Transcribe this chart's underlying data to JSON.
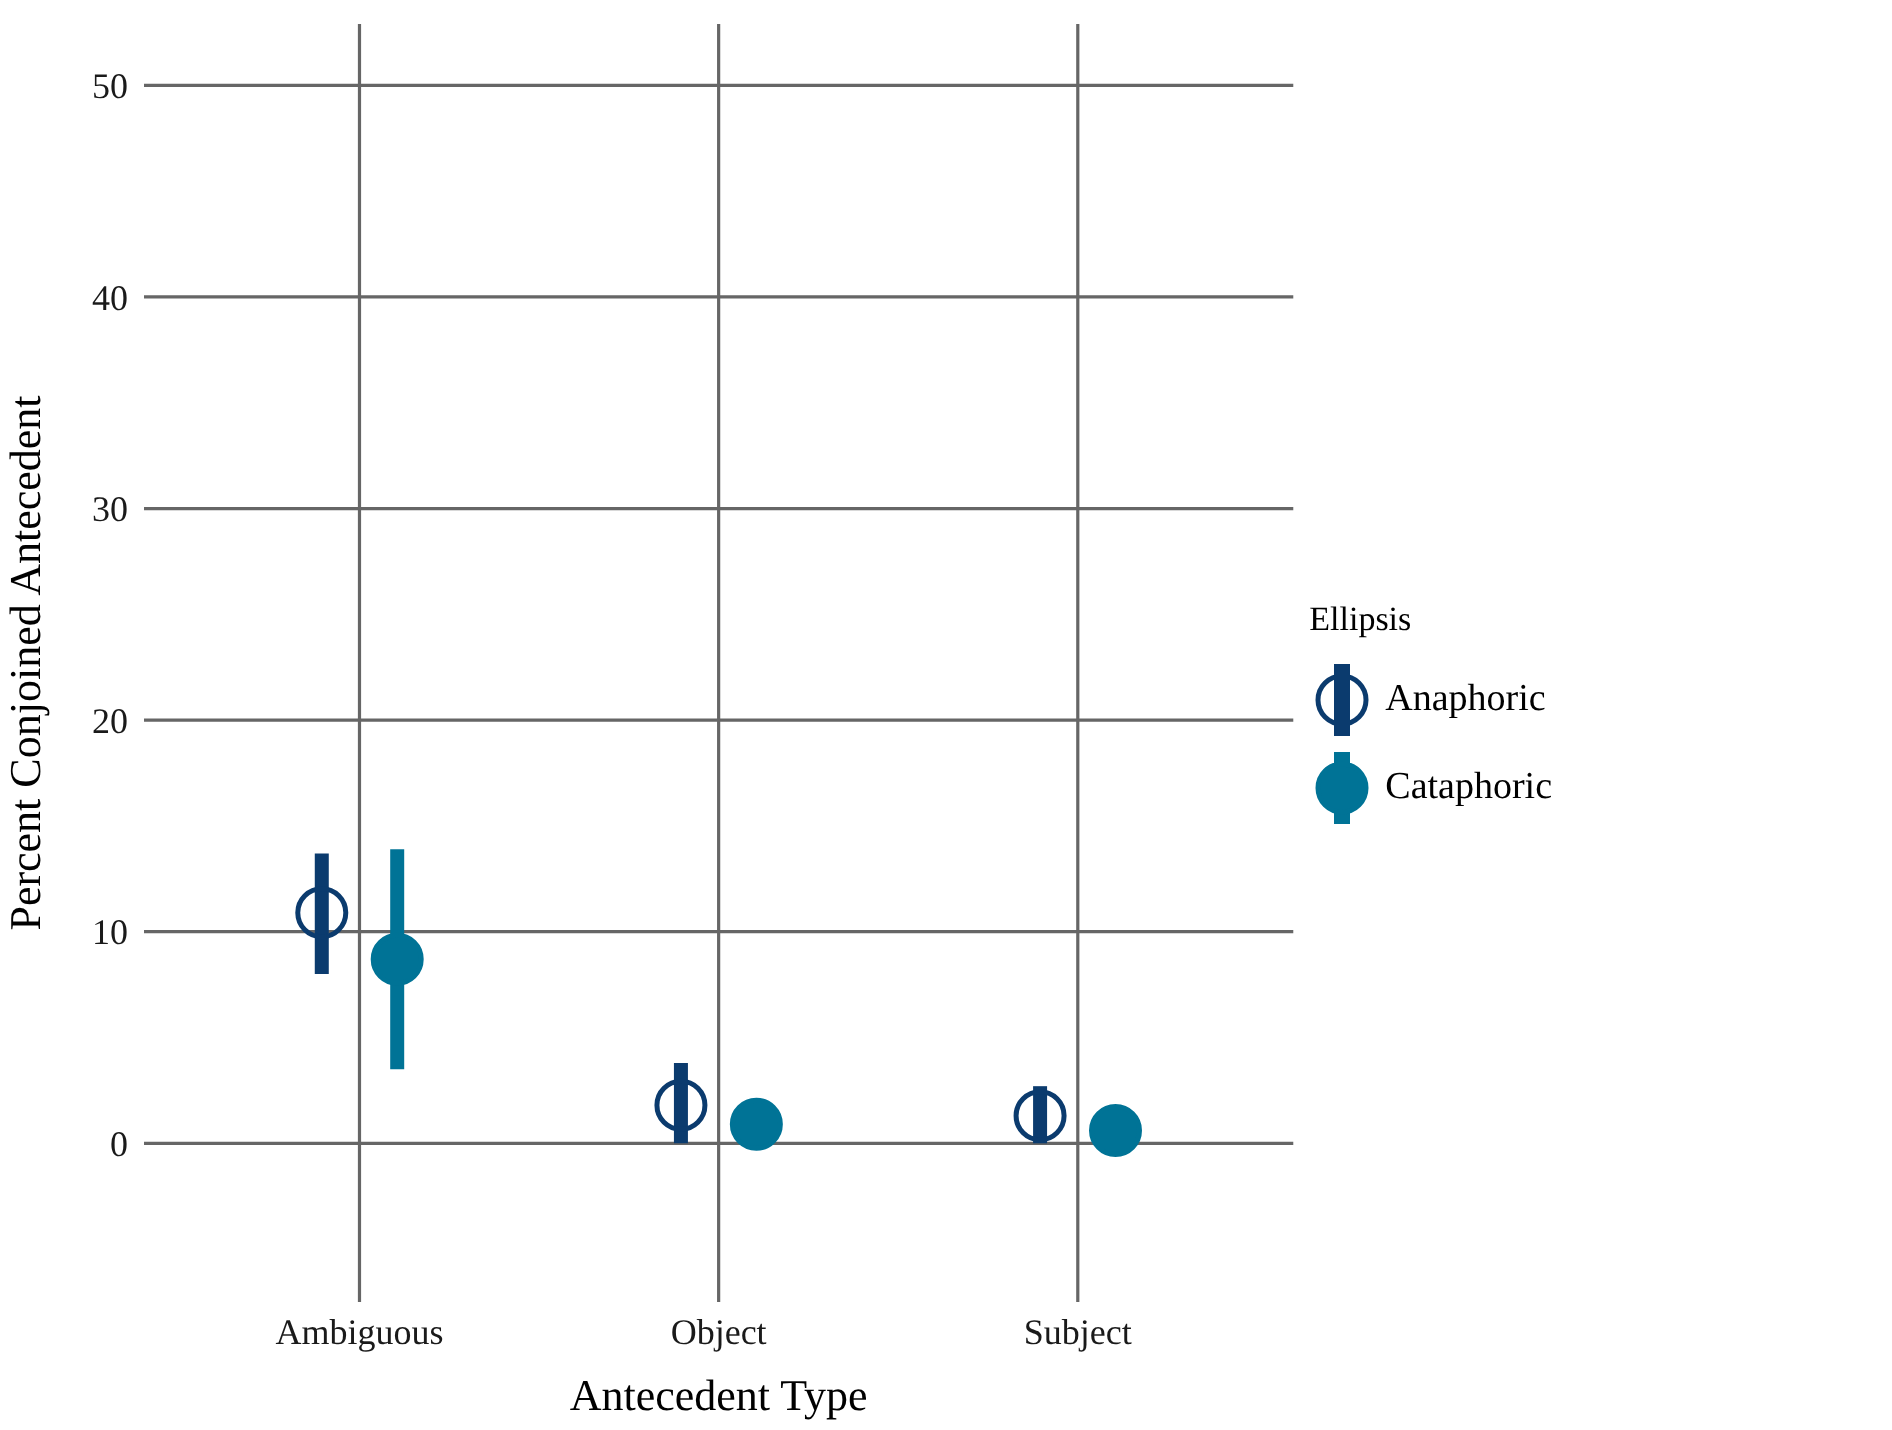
{
  "chart_data": {
    "type": "scatter",
    "xlabel": "Antecedent Type",
    "ylabel": "Percent Conjoined Antecedent",
    "legend_title": "Ellipsis",
    "legend": "right",
    "grid": true,
    "marker": "circle",
    "categories": [
      "Ambiguous",
      "Object",
      "Subject"
    ],
    "ylim": [
      -7.5,
      52.9
    ],
    "yticks": [
      0,
      10,
      20,
      30,
      40,
      50
    ],
    "series": [
      {
        "name": "Anaphoric",
        "color": "#0b3b6e",
        "values": [
          10.9,
          1.8,
          1.3
        ],
        "errors": [
          [
            8.0,
            13.7
          ],
          [
            0,
            3.8
          ],
          [
            0,
            2.7
          ]
        ]
      },
      {
        "name": "Cataphoric",
        "color": "#007396",
        "values": [
          8.7,
          0.9,
          0.6
        ],
        "errors": [
          [
            3.5,
            13.9
          ],
          null,
          null
        ]
      }
    ]
  }
}
